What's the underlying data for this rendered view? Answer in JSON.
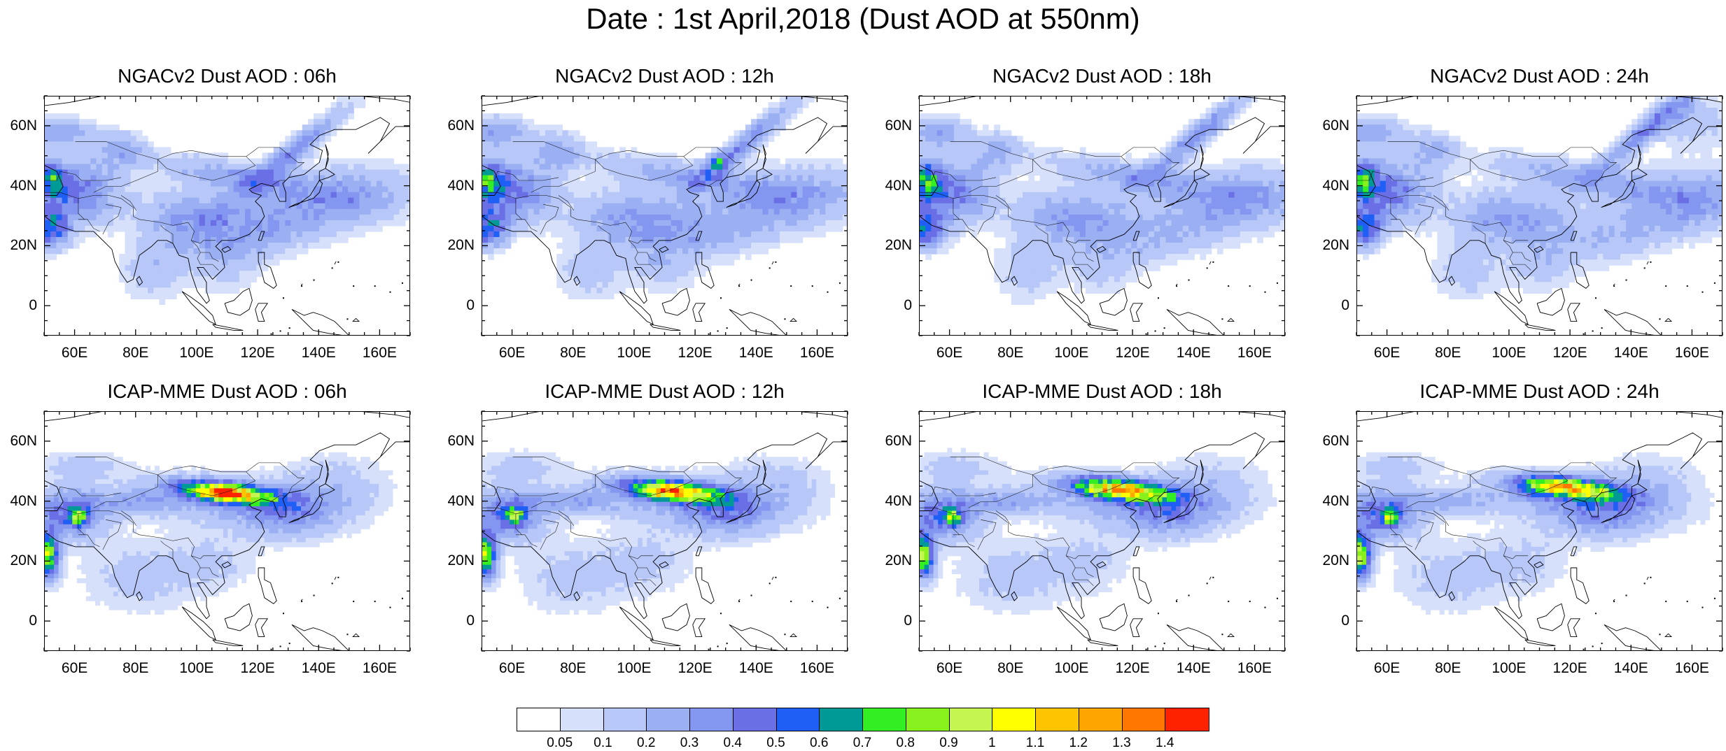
{
  "title": "Date : 1st April,2018 (Dust AOD at 550nm)",
  "axes": {
    "x_ticks": [
      "60E",
      "80E",
      "100E",
      "120E",
      "140E",
      "160E"
    ],
    "x_values": [
      60,
      80,
      100,
      120,
      140,
      160
    ],
    "y_ticks": [
      "60N",
      "40N",
      "20N",
      "0"
    ],
    "y_values": [
      60,
      40,
      20,
      0
    ],
    "lon_range": [
      50,
      170
    ],
    "lat_range": [
      -10,
      70
    ]
  },
  "panels": [
    {
      "title": "NGACv2 Dust AOD : 06h",
      "model": "NGACv2",
      "hour": "06h"
    },
    {
      "title": "NGACv2 Dust AOD : 12h",
      "model": "NGACv2",
      "hour": "12h"
    },
    {
      "title": "NGACv2 Dust AOD : 18h",
      "model": "NGACv2",
      "hour": "18h"
    },
    {
      "title": "NGACv2 Dust AOD : 24h",
      "model": "NGACv2",
      "hour": "24h"
    },
    {
      "title": "ICAP-MME Dust AOD : 06h",
      "model": "ICAP-MME",
      "hour": "06h"
    },
    {
      "title": "ICAP-MME Dust AOD : 12h",
      "model": "ICAP-MME",
      "hour": "12h"
    },
    {
      "title": "ICAP-MME Dust AOD : 18h",
      "model": "ICAP-MME",
      "hour": "18h"
    },
    {
      "title": "ICAP-MME Dust AOD : 24h",
      "model": "ICAP-MME",
      "hour": "24h"
    }
  ],
  "colorbar": {
    "labels": [
      "0.05",
      "0.1",
      "0.2",
      "0.3",
      "0.4",
      "0.5",
      "0.6",
      "0.7",
      "0.8",
      "0.9",
      "1",
      "1.1",
      "1.2",
      "1.3",
      "1.4"
    ],
    "colors": [
      "#ffffff",
      "#d6e0fb",
      "#b7c7f8",
      "#9bb0f3",
      "#8497f0",
      "#6a6fe6",
      "#1f5ff5",
      "#009a96",
      "#33ee22",
      "#88f01c",
      "#c4f550",
      "#ffff00",
      "#ffc400",
      "#ffa500",
      "#ff7700",
      "#ff2200"
    ]
  }
}
